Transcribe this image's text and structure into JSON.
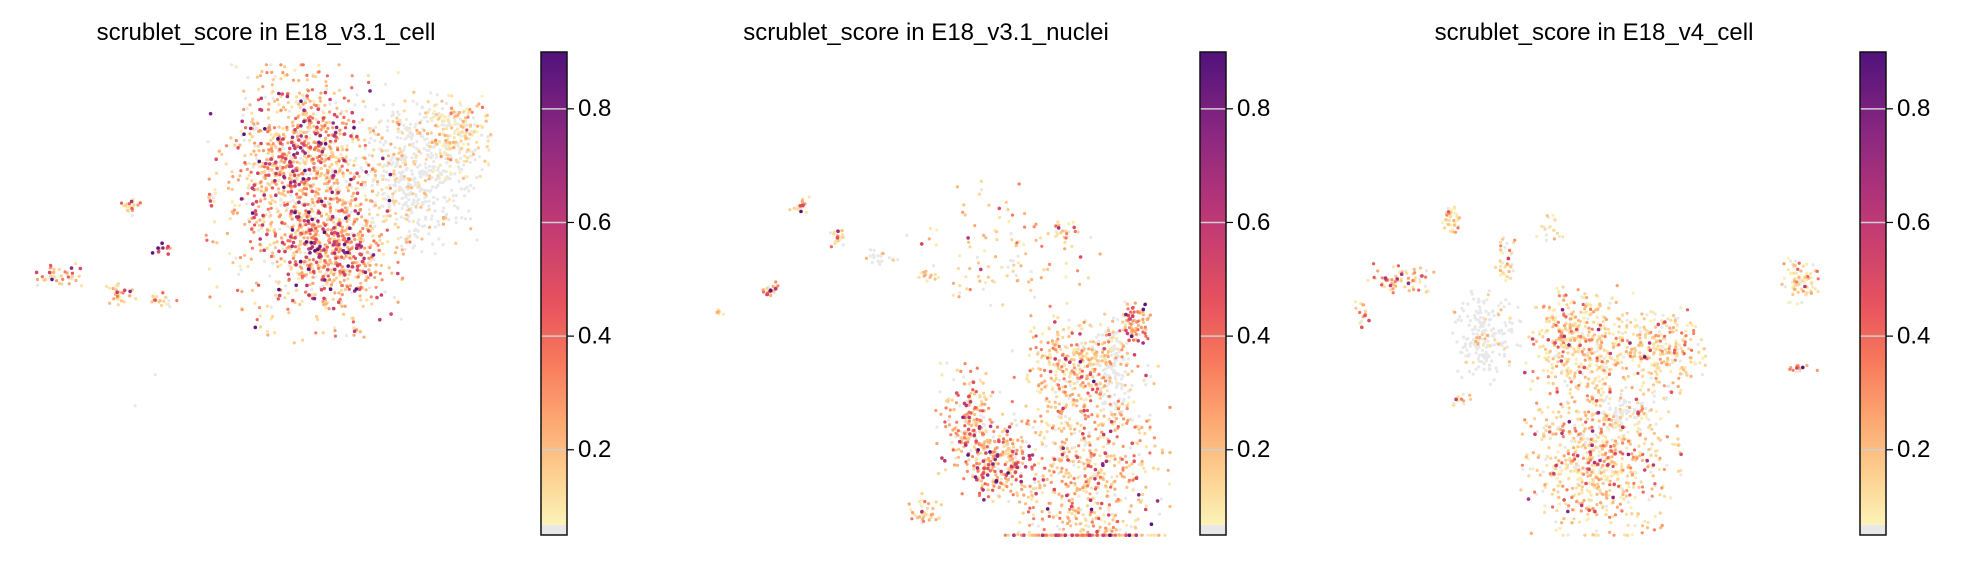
{
  "chart_data": [
    {
      "type": "scatter",
      "title": "scrublet_score in E18_v3.1_cell",
      "colorbar": {
        "ticks": [
          "0.2",
          "0.4",
          "0.6",
          "0.8"
        ],
        "tick_values": [
          0.2,
          0.4,
          0.6,
          0.8
        ],
        "range": [
          0.05,
          0.9
        ],
        "colormap": "magma_r",
        "na_color": "#e8e8e8"
      },
      "axes_visible": false,
      "clusters": [
        {
          "u": 58.7,
          "v": 29.6,
          "su": 18.7,
          "sv": 24.5,
          "n": 900,
          "score": 0.22
        },
        {
          "u": 56.3,
          "v": 21.8,
          "su": 11.5,
          "sv": 15.3,
          "n": 500,
          "score": 0.33
        },
        {
          "u": 62.7,
          "v": 39.8,
          "su": 9.4,
          "sv": 10.2,
          "n": 400,
          "score": 0.33
        },
        {
          "u": 79.6,
          "v": 24.5,
          "su": 11.5,
          "sv": 14.3,
          "n": 500,
          "score": 0.05
        },
        {
          "u": 88.8,
          "v": 16.7,
          "su": 6.3,
          "sv": 7.1,
          "n": 200,
          "score": 0.12
        },
        {
          "u": 21,
          "v": 30.8,
          "su": 2,
          "sv": 2,
          "n": 25,
          "score": 0.2
        },
        {
          "u": 6.3,
          "v": 44.9,
          "su": 5,
          "sv": 2,
          "n": 40,
          "score": 0.3
        },
        {
          "u": 18.5,
          "v": 48.8,
          "su": 3,
          "sv": 2,
          "n": 30,
          "score": 0.25
        },
        {
          "u": 27.5,
          "v": 50,
          "su": 3,
          "sv": 1.5,
          "n": 20,
          "score": 0.2
        },
        {
          "u": 37.9,
          "v": 29.6,
          "su": 1.5,
          "sv": 1.5,
          "n": 8,
          "score": 0.2
        },
        {
          "u": 27,
          "v": 39.8,
          "su": 2,
          "sv": 1.5,
          "n": 10,
          "score": 0.5
        },
        {
          "u": 26.2,
          "v": 65.3,
          "su": 0.2,
          "sv": 0.2,
          "n": 1,
          "score": 0.01
        },
        {
          "u": 21.9,
          "v": 71.6,
          "su": 0.2,
          "sv": 0.2,
          "n": 1,
          "score": 0.01
        }
      ]
    },
    {
      "type": "scatter",
      "title": "scrublet_score in E18_v3.1_nuclei",
      "colorbar": {
        "ticks": [
          "0.2",
          "0.4",
          "0.6",
          "0.8"
        ],
        "tick_values": [
          0.2,
          0.4,
          0.6,
          0.8
        ],
        "range": [
          0.05,
          0.9
        ],
        "colormap": "magma_r",
        "na_color": "#e8e8e8"
      },
      "axes_visible": false,
      "clusters": [
        {
          "u": 82.7,
          "v": 85.7,
          "su": 14.6,
          "sv": 22.9,
          "n": 800,
          "score": 0.22
        },
        {
          "u": 80.2,
          "v": 62.7,
          "su": 8.3,
          "sv": 8.2,
          "n": 250,
          "score": 0.2
        },
        {
          "u": 87.9,
          "v": 65.3,
          "su": 4,
          "sv": 10,
          "n": 150,
          "score": 0.03
        },
        {
          "u": 64.6,
          "v": 83,
          "su": 7,
          "sv": 7,
          "n": 250,
          "score": 0.3
        },
        {
          "u": 58.3,
          "v": 74.5,
          "su": 6,
          "sv": 10,
          "n": 200,
          "score": 0.25
        },
        {
          "u": 49,
          "v": 93,
          "su": 3,
          "sv": 3,
          "n": 40,
          "score": 0.2
        },
        {
          "u": 93,
          "v": 55,
          "su": 3,
          "sv": 4,
          "n": 80,
          "score": 0.35
        },
        {
          "u": 64.6,
          "v": 39.8,
          "su": 18,
          "sv": 12,
          "n": 120,
          "score": 0.2
        },
        {
          "u": 22.9,
          "v": 30.8,
          "su": 2,
          "sv": 2,
          "n": 20,
          "score": 0.2
        },
        {
          "u": 16.5,
          "v": 48,
          "su": 2,
          "sv": 1.5,
          "n": 25,
          "score": 0.35
        },
        {
          "u": 30.6,
          "v": 37.2,
          "su": 2,
          "sv": 2,
          "n": 20,
          "score": 0.2
        },
        {
          "u": 39.6,
          "v": 41,
          "su": 3,
          "sv": 1.5,
          "n": 20,
          "score": 0.03
        },
        {
          "u": 48.9,
          "v": 44.9,
          "su": 2,
          "sv": 1.5,
          "n": 12,
          "score": 0.2
        },
        {
          "u": 77.5,
          "v": 36,
          "su": 2,
          "sv": 2,
          "n": 15,
          "score": 0.2
        },
        {
          "u": 6,
          "v": 52.4,
          "su": 1,
          "sv": 0.5,
          "n": 6,
          "score": 0.2
        }
      ]
    },
    {
      "type": "scatter",
      "title": "scrublet_score in E18_v4_cell",
      "colorbar": {
        "ticks": [
          "0.2",
          "0.4",
          "0.6",
          "0.8"
        ],
        "tick_values": [
          0.2,
          0.4,
          0.6,
          0.8
        ],
        "range": [
          0.05,
          0.9
        ],
        "colormap": "magma_r",
        "na_color": "#e8e8e8"
      },
      "axes_visible": false,
      "clusters": [
        {
          "u": 54.2,
          "v": 83,
          "su": 14,
          "sv": 14,
          "n": 700,
          "score": 0.18
        },
        {
          "u": 50.2,
          "v": 59,
          "su": 10,
          "sv": 10,
          "n": 450,
          "score": 0.17
        },
        {
          "u": 30.6,
          "v": 57.6,
          "su": 6,
          "sv": 8,
          "n": 200,
          "score": 0.02
        },
        {
          "u": 67,
          "v": 60,
          "su": 8,
          "sv": 8,
          "n": 250,
          "score": 0.15
        },
        {
          "u": 59,
          "v": 73,
          "su": 6,
          "sv": 5,
          "n": 80,
          "score": 0.03
        },
        {
          "u": 95.8,
          "v": 46,
          "su": 3.5,
          "sv": 4,
          "n": 80,
          "score": 0.15
        },
        {
          "u": 12.5,
          "v": 46,
          "su": 6,
          "sv": 3,
          "n": 70,
          "score": 0.25
        },
        {
          "u": 23,
          "v": 33.5,
          "su": 2,
          "sv": 3,
          "n": 40,
          "score": 0.15
        },
        {
          "u": 34.6,
          "v": 42,
          "su": 2,
          "sv": 5,
          "n": 40,
          "score": 0.15
        },
        {
          "u": 4.6,
          "v": 52.4,
          "su": 1.5,
          "sv": 3,
          "n": 15,
          "score": 0.2
        },
        {
          "u": 95.8,
          "v": 64,
          "su": 3,
          "sv": 1,
          "n": 15,
          "score": 0.3
        },
        {
          "u": 25,
          "v": 70.4,
          "su": 2,
          "sv": 2,
          "n": 15,
          "score": 0.2
        },
        {
          "u": 43.7,
          "v": 34.7,
          "su": 3,
          "sv": 3,
          "n": 20,
          "score": 0.1
        }
      ]
    }
  ]
}
